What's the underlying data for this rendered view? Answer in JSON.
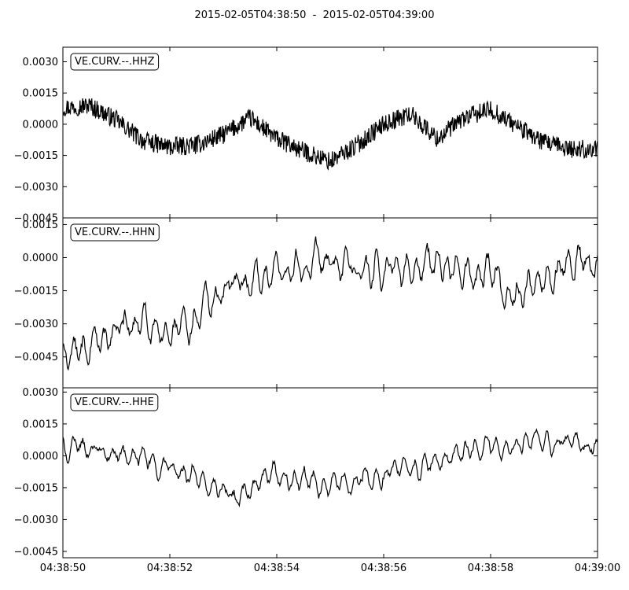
{
  "title": "2015-02-05T04:38:50  -  2015-02-05T04:39:00",
  "chart_data": {
    "type": "line",
    "title": "2015-02-05T04:38:50  -  2015-02-05T04:39:00",
    "x_ticks": [
      "04:38:50",
      "04:38:52",
      "04:38:54",
      "04:38:56",
      "04:38:58",
      "04:39:00"
    ],
    "x_range_seconds": [
      0,
      10
    ],
    "grid": false,
    "line_color": "#000000",
    "traces": [
      {
        "name": "VE.CURV.--.HHZ",
        "ylim": [
          -0.0045,
          0.0037
        ],
        "yticks": [
          -0.0045,
          -0.003,
          -0.0015,
          0.0,
          0.0015,
          0.003
        ],
        "ytick_labels": [
          "−0.0045",
          "−0.0030",
          "−0.0015",
          "0.0000",
          "0.0015",
          "0.0030"
        ],
        "noise": 0.00045,
        "env_t": [
          0.0,
          0.5,
          1.0,
          1.5,
          2.0,
          2.5,
          3.0,
          3.5,
          4.0,
          4.5,
          5.0,
          5.5,
          6.0,
          6.5,
          7.0,
          7.5,
          8.0,
          8.5,
          9.0,
          9.5,
          10.0
        ],
        "env_v": [
          0.0008,
          0.0009,
          0.0002,
          -0.0008,
          -0.0011,
          -0.001,
          -0.0005,
          0.0003,
          -0.0007,
          -0.0013,
          -0.0018,
          -0.001,
          0.0,
          0.0005,
          -0.0007,
          0.0003,
          0.0007,
          -0.0001,
          -0.0009,
          -0.0012,
          -0.0012
        ]
      },
      {
        "name": "VE.CURV.--.HHN",
        "ylim": [
          -0.0059,
          0.0018
        ],
        "yticks": [
          -0.0045,
          -0.003,
          -0.0015,
          0.0,
          0.0015
        ],
        "ytick_labels": [
          "−0.0045",
          "−0.0030",
          "−0.0015",
          "0.0000",
          "0.0015"
        ],
        "noise": 0.00085,
        "env_t": [
          0.0,
          0.5,
          1.0,
          1.5,
          2.0,
          2.5,
          3.0,
          3.5,
          4.0,
          4.5,
          5.0,
          5.5,
          6.0,
          6.5,
          7.0,
          7.5,
          8.0,
          8.5,
          9.0,
          9.5,
          10.0
        ],
        "env_v": [
          -0.0045,
          -0.0042,
          -0.0033,
          -0.0028,
          -0.0034,
          -0.0025,
          -0.0012,
          -0.0011,
          -0.0005,
          -0.0006,
          -0.0003,
          -0.0006,
          -0.0005,
          -0.0006,
          -0.0003,
          -0.0005,
          -0.0008,
          -0.0017,
          -0.0009,
          -0.0004,
          -0.0002
        ]
      },
      {
        "name": "VE.CURV.--.HHE",
        "ylim": [
          -0.0048,
          0.0032
        ],
        "yticks": [
          -0.0045,
          -0.003,
          -0.0015,
          0.0,
          0.0015,
          0.003
        ],
        "ytick_labels": [
          "−0.0045",
          "−0.0030",
          "−0.0015",
          "0.0000",
          "0.0015",
          "0.0030"
        ],
        "noise": 0.0006,
        "env_t": [
          0.0,
          0.5,
          1.0,
          1.5,
          2.0,
          2.5,
          3.0,
          3.5,
          4.0,
          4.5,
          5.0,
          5.5,
          6.0,
          6.5,
          7.0,
          7.5,
          8.0,
          8.5,
          9.0,
          9.5,
          10.0
        ],
        "env_v": [
          0.0002,
          0.0004,
          0.0001,
          -0.0002,
          -0.0007,
          -0.0011,
          -0.0018,
          -0.0018,
          -0.001,
          -0.0013,
          -0.0012,
          -0.0012,
          -0.0009,
          -0.0006,
          -0.0003,
          0.0001,
          0.0003,
          0.0004,
          0.0006,
          0.0006,
          0.0003
        ]
      }
    ]
  }
}
